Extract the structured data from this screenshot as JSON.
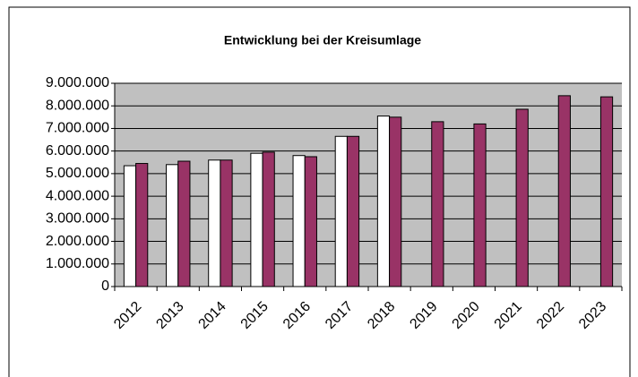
{
  "chart_data": {
    "type": "bar",
    "title": "Entwicklung bei der Kreisumlage",
    "categories": [
      "2012",
      "2013",
      "2014",
      "2015",
      "2016",
      "2017",
      "2018",
      "2019",
      "2020",
      "2021",
      "2022",
      "2023"
    ],
    "series": [
      {
        "color": "#ffffff",
        "values": [
          5350000,
          5400000,
          5600000,
          5900000,
          5800000,
          6650000,
          7550000,
          null,
          null,
          null,
          null,
          null
        ]
      },
      {
        "color": "#993366",
        "values": [
          5450000,
          5550000,
          5600000,
          5950000,
          5750000,
          6650000,
          7500000,
          7300000,
          7200000,
          7850000,
          8450000,
          8400000
        ]
      }
    ],
    "ylim": [
      0,
      9000000
    ],
    "yticks": [
      {
        "value": 0,
        "label": "0"
      },
      {
        "value": 1000000,
        "label": "1.000.000"
      },
      {
        "value": 2000000,
        "label": "2.000.000"
      },
      {
        "value": 3000000,
        "label": "3.000.000"
      },
      {
        "value": 4000000,
        "label": "4.000.000"
      },
      {
        "value": 5000000,
        "label": "5.000.000"
      },
      {
        "value": 6000000,
        "label": "6.000.000"
      },
      {
        "value": 7000000,
        "label": "7.000.000"
      },
      {
        "value": 8000000,
        "label": "8.000.000"
      },
      {
        "value": 9000000,
        "label": "9.000.000"
      }
    ],
    "grid": true,
    "plot_background": "#c0c0c0"
  }
}
